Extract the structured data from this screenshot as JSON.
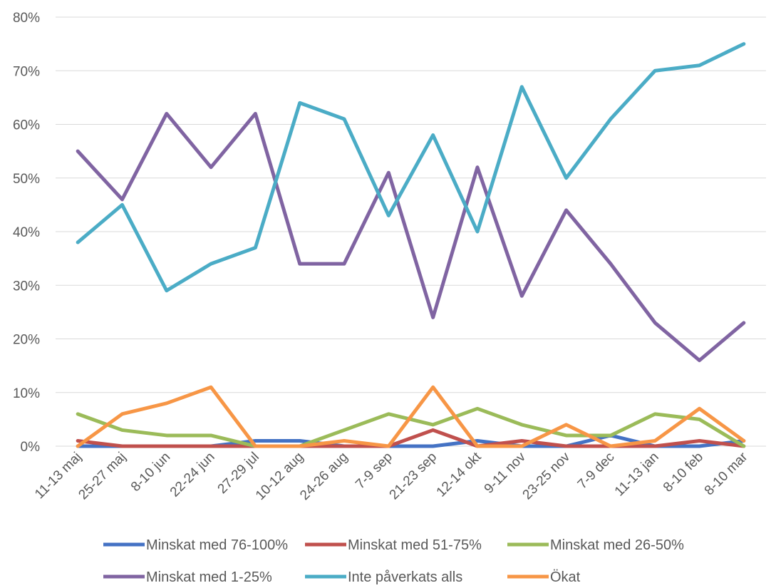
{
  "chart_data": {
    "type": "line",
    "title": "",
    "xlabel": "",
    "ylabel": "",
    "ylim": [
      0,
      80
    ],
    "y_ticks": [
      0,
      10,
      20,
      30,
      40,
      50,
      60,
      70,
      80
    ],
    "y_tick_suffix": "%",
    "grid": "horizontal",
    "legend_position": "bottom",
    "categories": [
      "11-13 maj",
      "25-27 maj",
      "8-10 jun",
      "22-24 jun",
      "27-29 jul",
      "10-12 aug",
      "24-26 aug",
      "7-9 sep",
      "21-23 sep",
      "12-14 okt",
      "9-11 nov",
      "23-25 nov",
      "7-9 dec",
      "11-13 jan",
      "8-10 feb",
      "8-10 mar"
    ],
    "series": [
      {
        "name": "Minskat med 76-100%",
        "color": "#4472C4",
        "values": [
          0,
          0,
          0,
          0,
          1,
          1,
          0,
          0,
          0,
          1,
          0,
          0,
          2,
          0,
          0,
          1
        ]
      },
      {
        "name": "Minskat med 51-75%",
        "color": "#C0504D",
        "values": [
          1,
          0,
          0,
          0,
          0,
          0,
          0,
          0,
          3,
          0,
          1,
          0,
          0,
          0,
          1,
          0
        ]
      },
      {
        "name": "Minskat med 26-50%",
        "color": "#9BBB59",
        "values": [
          6,
          3,
          2,
          2,
          0,
          0,
          3,
          6,
          4,
          7,
          4,
          2,
          2,
          6,
          5,
          0
        ]
      },
      {
        "name": "Minskat med 1-25%",
        "color": "#8064A2",
        "values": [
          55,
          46,
          62,
          52,
          62,
          34,
          34,
          51,
          24,
          52,
          28,
          44,
          34,
          23,
          16,
          23
        ]
      },
      {
        "name": "Inte påverkats alls",
        "color": "#4BACC6",
        "values": [
          38,
          45,
          29,
          34,
          37,
          64,
          61,
          43,
          58,
          40,
          67,
          50,
          61,
          70,
          71,
          75
        ]
      },
      {
        "name": "Ökat",
        "color": "#F79646",
        "values": [
          0,
          6,
          8,
          11,
          0,
          0,
          1,
          0,
          11,
          0,
          0,
          4,
          0,
          1,
          7,
          1
        ]
      }
    ]
  }
}
